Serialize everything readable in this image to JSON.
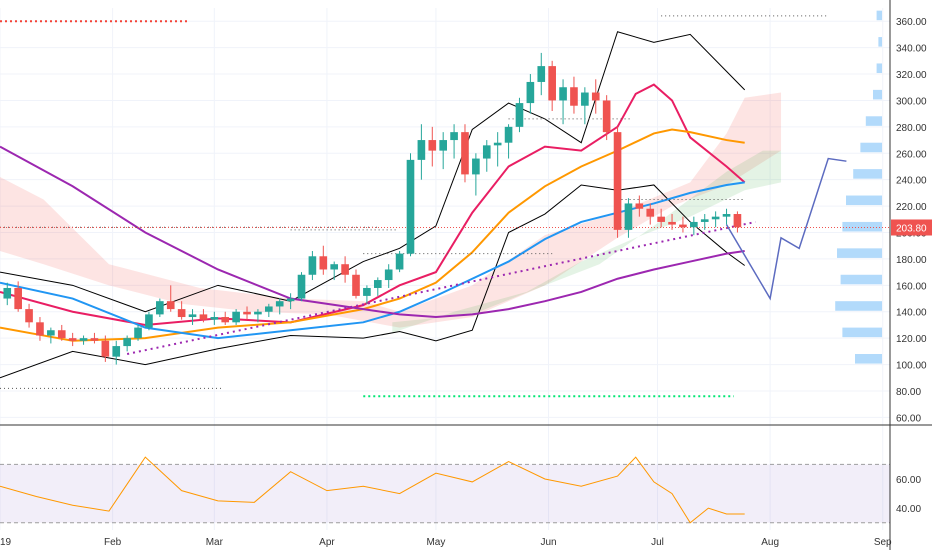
{
  "chart_data": [
    {
      "type": "candlestick",
      "panel": "price",
      "title": "",
      "ylabel": "",
      "ylim": [
        55,
        370
      ],
      "y_ticks": [
        "360.00",
        "340.00",
        "320.00",
        "300.00",
        "280.00",
        "260.00",
        "240.00",
        "220.00",
        "200.00",
        "180.00",
        "160.00",
        "140.00",
        "120.00",
        "100.00",
        "80.00",
        "60.00"
      ],
      "last_price": "203.80",
      "x_ticks": [
        "19",
        "Feb",
        "Mar",
        "Apr",
        "May",
        "Jun",
        "Jul",
        "Aug",
        "Sep"
      ],
      "xlim": [
        0,
        245
      ],
      "x_tick_days": [
        0,
        31,
        59,
        90,
        120,
        151,
        181,
        212,
        243
      ],
      "note": "",
      "candles_x_day": [
        2,
        5,
        8,
        11,
        14,
        17,
        20,
        23,
        26,
        29,
        32,
        35,
        38,
        41,
        44,
        47,
        50,
        53,
        56,
        59,
        62,
        65,
        68,
        71,
        74,
        77,
        80,
        83,
        86,
        89,
        92,
        95,
        98,
        101,
        104,
        107,
        110,
        113,
        116,
        119,
        122,
        125,
        128,
        131,
        134,
        137,
        140,
        143,
        146,
        149,
        152,
        155,
        158,
        161,
        164,
        167,
        170,
        173,
        176,
        179,
        182,
        185,
        188,
        191,
        194,
        197,
        200,
        203
      ],
      "candles_ohlc": [
        [
          150,
          162,
          145,
          158
        ],
        [
          158,
          163,
          140,
          142
        ],
        [
          142,
          146,
          128,
          132
        ],
        [
          132,
          136,
          118,
          122
        ],
        [
          122,
          128,
          116,
          126
        ],
        [
          126,
          130,
          118,
          120
        ],
        [
          120,
          124,
          114,
          118
        ],
        [
          118,
          122,
          115,
          120
        ],
        [
          120,
          124,
          116,
          118
        ],
        [
          118,
          122,
          102,
          106
        ],
        [
          106,
          118,
          100,
          114
        ],
        [
          114,
          122,
          110,
          120
        ],
        [
          120,
          130,
          118,
          128
        ],
        [
          128,
          140,
          126,
          138
        ],
        [
          138,
          150,
          136,
          148
        ],
        [
          148,
          160,
          140,
          142
        ],
        [
          142,
          148,
          134,
          136
        ],
        [
          136,
          142,
          130,
          138
        ],
        [
          138,
          142,
          132,
          134
        ],
        [
          134,
          140,
          130,
          136
        ],
        [
          136,
          140,
          130,
          132
        ],
        [
          132,
          142,
          130,
          140
        ],
        [
          140,
          144,
          134,
          138
        ],
        [
          138,
          142,
          132,
          140
        ],
        [
          140,
          146,
          136,
          144
        ],
        [
          144,
          150,
          138,
          148
        ],
        [
          148,
          154,
          142,
          150
        ],
        [
          150,
          170,
          148,
          168
        ],
        [
          168,
          186,
          164,
          182
        ],
        [
          182,
          190,
          168,
          172
        ],
        [
          172,
          178,
          164,
          176
        ],
        [
          176,
          182,
          162,
          168
        ],
        [
          168,
          172,
          150,
          152
        ],
        [
          152,
          160,
          146,
          158
        ],
        [
          158,
          166,
          152,
          164
        ],
        [
          164,
          176,
          158,
          172
        ],
        [
          172,
          186,
          170,
          184
        ],
        [
          184,
          260,
          182,
          255
        ],
        [
          255,
          282,
          240,
          270
        ],
        [
          270,
          280,
          250,
          262
        ],
        [
          262,
          276,
          248,
          270
        ],
        [
          270,
          282,
          256,
          276
        ],
        [
          276,
          282,
          238,
          244
        ],
        [
          244,
          260,
          228,
          256
        ],
        [
          256,
          270,
          246,
          266
        ],
        [
          266,
          276,
          250,
          268
        ],
        [
          268,
          282,
          256,
          280
        ],
        [
          280,
          302,
          276,
          298
        ],
        [
          298,
          320,
          290,
          314
        ],
        [
          314,
          336,
          304,
          326
        ],
        [
          326,
          330,
          292,
          300
        ],
        [
          300,
          316,
          282,
          310
        ],
        [
          310,
          318,
          290,
          296
        ],
        [
          296,
          310,
          282,
          306
        ],
        [
          306,
          316,
          290,
          300
        ],
        [
          300,
          304,
          270,
          276
        ],
        [
          276,
          280,
          196,
          202
        ],
        [
          202,
          226,
          196,
          222
        ],
        [
          222,
          228,
          212,
          218
        ],
        [
          218,
          222,
          206,
          212
        ],
        [
          212,
          218,
          204,
          208
        ],
        [
          208,
          214,
          202,
          206
        ],
        [
          206,
          212,
          200,
          204
        ],
        [
          204,
          212,
          198,
          208
        ],
        [
          208,
          214,
          202,
          210
        ],
        [
          210,
          216,
          204,
          212
        ],
        [
          212,
          218,
          206,
          214
        ],
        [
          214,
          216,
          200,
          204
        ]
      ],
      "moving_averages": [
        {
          "name": "",
          "color": "#e91e63",
          "x_day": [
            0,
            20,
            40,
            60,
            80,
            100,
            110,
            120,
            130,
            140,
            150,
            160,
            170,
            175,
            180,
            185,
            190,
            200,
            205
          ],
          "y": [
            155,
            140,
            130,
            135,
            132,
            145,
            160,
            170,
            215,
            250,
            265,
            262,
            280,
            305,
            312,
            300,
            272,
            250,
            238
          ]
        },
        {
          "name": "",
          "color": "#ff9800",
          "x_day": [
            0,
            20,
            40,
            60,
            80,
            100,
            110,
            120,
            130,
            140,
            150,
            160,
            170,
            180,
            185,
            190,
            200,
            205
          ],
          "y": [
            128,
            118,
            120,
            128,
            132,
            142,
            150,
            162,
            185,
            215,
            235,
            250,
            262,
            275,
            278,
            276,
            270,
            268
          ]
        },
        {
          "name": "",
          "color": "#2196f3",
          "x_day": [
            0,
            20,
            40,
            60,
            80,
            100,
            110,
            120,
            130,
            140,
            150,
            160,
            170,
            180,
            190,
            200,
            205
          ],
          "y": [
            162,
            150,
            128,
            120,
            126,
            132,
            140,
            152,
            165,
            178,
            195,
            208,
            215,
            222,
            230,
            236,
            238
          ]
        },
        {
          "name": "",
          "color": "#9c27b0",
          "x_day": [
            0,
            20,
            40,
            60,
            80,
            100,
            110,
            120,
            130,
            140,
            150,
            160,
            170,
            180,
            190,
            200,
            205
          ],
          "y": [
            265,
            235,
            200,
            172,
            150,
            142,
            138,
            136,
            138,
            142,
            148,
            155,
            165,
            172,
            178,
            184,
            186
          ]
        }
      ],
      "bollinger": {
        "upper": {
          "x_day": [
            0,
            20,
            40,
            60,
            80,
            100,
            110,
            120,
            130,
            140,
            150,
            160,
            170,
            180,
            190,
            200,
            205
          ],
          "y": [
            170,
            160,
            140,
            160,
            148,
            178,
            188,
            205,
            278,
            298,
            286,
            268,
            352,
            344,
            350,
            322,
            308
          ]
        },
        "lower": {
          "x_day": [
            0,
            20,
            40,
            60,
            80,
            100,
            110,
            120,
            130,
            140,
            150,
            160,
            170,
            180,
            190,
            200,
            205
          ],
          "y": [
            90,
            110,
            100,
            112,
            122,
            120,
            125,
            118,
            126,
            200,
            214,
            236,
            232,
            236,
            208,
            185,
            175
          ]
        }
      },
      "rsi": {
        "ylim": [
          25,
          95
        ],
        "y_ticks": [
          "60.00",
          "40.00"
        ],
        "band": [
          30,
          70
        ],
        "x_day": [
          0,
          10,
          20,
          30,
          40,
          50,
          60,
          70,
          80,
          90,
          100,
          110,
          120,
          130,
          140,
          150,
          160,
          170,
          175,
          180,
          185,
          190,
          195,
          200,
          205
        ],
        "y": [
          55,
          48,
          42,
          38,
          75,
          52,
          45,
          44,
          65,
          52,
          55,
          50,
          64,
          58,
          72,
          60,
          55,
          62,
          75,
          58,
          50,
          30,
          40,
          36,
          36
        ]
      },
      "projection": {
        "x_day": [
          200,
          212,
          215,
          220,
          228,
          233
        ],
        "y": [
          206,
          150,
          196,
          188,
          256,
          254
        ]
      }
    }
  ]
}
